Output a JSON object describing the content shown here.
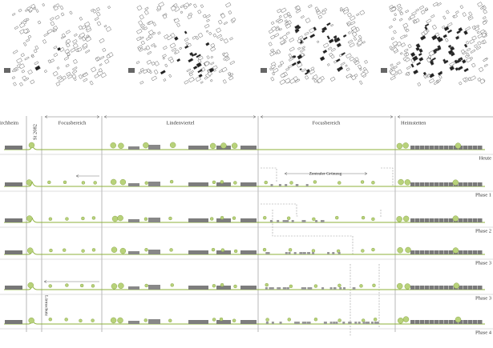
{
  "header": {
    "labels": [
      "irchheim",
      "St 2082",
      "Focusbereich",
      "Lindenviertel",
      "Focusbereich",
      "Heimstetten"
    ]
  },
  "annotations": {
    "center": "Zentraler Grünzug",
    "vertical": "Lärmschutz"
  },
  "rows": [
    "Heute",
    "Phase 1",
    "Phase 2",
    "Phase 3",
    "Phase 3",
    "Phase 4"
  ]
}
